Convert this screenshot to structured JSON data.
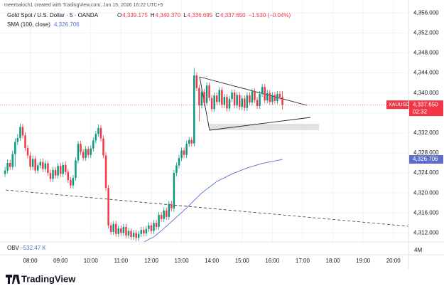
{
  "header": {
    "credit": "meerbaloch1 created with TradingView.com, Jun 15, 2026 16:22 UTC+5",
    "symbol": "Gold Spot / U.S. Dollar · 5 · OANDA",
    "ohlc": [
      {
        "label": "O",
        "value": "4,339.175"
      },
      {
        "label": "H",
        "value": "4,340.370"
      },
      {
        "label": "L",
        "value": "4,336.695"
      },
      {
        "label": "C",
        "value": "4,337.650"
      }
    ],
    "change": "−1.530 (−0.04%)"
  },
  "indicators": {
    "sma_label": "SMA (100, close)",
    "sma_value": "4,326.706",
    "obv_label": "OBV",
    "obv_value": "−532.47 K",
    "obv_scale": "4M"
  },
  "price_tags": {
    "symbol": "XAUUSD",
    "last_price": "4,337.650",
    "countdown": "02:32"
  },
  "footer": {
    "brand": "TradingView"
  },
  "chart_data": {
    "type": "candlestick",
    "up_color": "#089981",
    "down_color": "#f23645",
    "xlim": [
      "07:00",
      "20:30"
    ],
    "xticks": [
      "08:00",
      "09:00",
      "10:00",
      "11:00",
      "12:00",
      "13:00",
      "14:00",
      "15:00",
      "16:00",
      "17:00",
      "18:00",
      "19:00",
      "20:00"
    ],
    "ylim": [
      4310.2,
      4358.6
    ],
    "yticks": [
      {
        "value": 4312,
        "label": "4,312.000"
      },
      {
        "value": 4316,
        "label": "4,316.000"
      },
      {
        "value": 4320,
        "label": "4,320.000"
      },
      {
        "value": 4324,
        "label": "4,324.000"
      },
      {
        "value": 4328,
        "label": "4,328.000"
      },
      {
        "value": 4332,
        "label": "4,332.000"
      },
      {
        "value": 4336,
        "label": "4,336.000"
      },
      {
        "value": 4340,
        "label": "4,340.000"
      },
      {
        "value": 4344,
        "label": "4,344.000"
      },
      {
        "value": 4348,
        "label": "4,348.000"
      },
      {
        "value": 4352,
        "label": "4,352.000"
      },
      {
        "value": 4356,
        "label": "4,356.000"
      }
    ],
    "x": [
      "07:10",
      "07:15",
      "07:20",
      "07:25",
      "07:30",
      "07:35",
      "07:40",
      "07:45",
      "07:50",
      "07:55",
      "08:00",
      "08:05",
      "08:10",
      "08:15",
      "08:20",
      "08:25",
      "08:30",
      "08:35",
      "08:40",
      "08:45",
      "08:50",
      "08:55",
      "09:00",
      "09:05",
      "09:10",
      "09:15",
      "09:20",
      "09:25",
      "09:30",
      "09:35",
      "09:40",
      "09:45",
      "09:50",
      "09:55",
      "10:00",
      "10:05",
      "10:10",
      "10:15",
      "10:20",
      "10:25",
      "10:30",
      "10:35",
      "10:40",
      "10:45",
      "10:50",
      "10:55",
      "11:00",
      "11:05",
      "11:10",
      "11:15",
      "11:20",
      "11:25",
      "11:30",
      "11:35",
      "11:40",
      "11:45",
      "11:50",
      "11:55",
      "12:00",
      "12:05",
      "12:10",
      "12:15",
      "12:20",
      "12:25",
      "12:30",
      "12:35",
      "12:40",
      "12:45",
      "12:50",
      "12:55",
      "13:00",
      "13:05",
      "13:10",
      "13:15",
      "13:20",
      "13:25",
      "13:30",
      "13:35",
      "13:40",
      "13:45",
      "13:50",
      "13:55",
      "14:00",
      "14:05",
      "14:10",
      "14:15",
      "14:20",
      "14:25",
      "14:30",
      "14:35",
      "14:40",
      "14:45",
      "14:50",
      "14:55",
      "15:00",
      "15:05",
      "15:10",
      "15:15",
      "15:20",
      "15:25",
      "15:30",
      "15:35",
      "15:40",
      "15:45",
      "15:50",
      "15:55",
      "16:00",
      "16:05",
      "16:10",
      "16:15",
      "16:20"
    ],
    "open": [
      4323.8,
      4324.5,
      4326.0,
      4325.2,
      4327.8,
      4330.2,
      4331.0,
      4333.2,
      4331.5,
      4329.0,
      4327.5,
      4325.2,
      4326.8,
      4324.5,
      4325.5,
      4326.2,
      4324.8,
      4325.9,
      4324.0,
      4322.8,
      4324.6,
      4323.5,
      4325.4,
      4323.8,
      4325.6,
      4324.2,
      4322.6,
      4321.5,
      4323.0,
      4326.5,
      4329.8,
      4328.2,
      4327.0,
      4328.8,
      4327.6,
      4328.9,
      4330.5,
      4331.8,
      4333.0,
      4330.9,
      4327.5,
      4321.0,
      4313.5,
      4312.2,
      4313.8,
      4311.8,
      4312.9,
      4312.0,
      4313.2,
      4311.5,
      4312.4,
      4311.2,
      4312.0,
      4311.0,
      4311.8,
      4312.6,
      4311.9,
      4312.8,
      4313.5,
      4312.4,
      4314.0,
      4313.2,
      4315.6,
      4314.8,
      4316.5,
      4315.2,
      4317.8,
      4316.9,
      4324.0,
      4325.5,
      4327.0,
      4328.5,
      4327.6,
      4329.8,
      4330.6,
      4329.9,
      4343.5,
      4341.0,
      4337.5,
      4340.2,
      4338.0,
      4341.5,
      4339.0,
      4336.8,
      4339.5,
      4338.2,
      4340.6,
      4337.6,
      4339.2,
      4336.9,
      4338.8,
      4340.1,
      4337.5,
      4339.6,
      4337.2,
      4338.9,
      4337.0,
      4339.5,
      4338.1,
      4340.3,
      4338.6,
      4337.4,
      4339.8,
      4341.2,
      4338.5,
      4340.0,
      4338.2,
      4339.6,
      4338.4,
      4339.8,
      4339.175
    ],
    "high": [
      4325.2,
      4326.7,
      4326.6,
      4328.5,
      4330.9,
      4331.8,
      4333.9,
      4333.8,
      4332.1,
      4329.6,
      4328.1,
      4327.5,
      4327.4,
      4326.1,
      4326.8,
      4326.9,
      4326.5,
      4326.4,
      4324.7,
      4325.2,
      4325.2,
      4326.0,
      4326.0,
      4326.2,
      4326.3,
      4324.8,
      4323.2,
      4323.6,
      4327.1,
      4330.4,
      4330.4,
      4328.8,
      4329.4,
      4329.4,
      4329.5,
      4331.1,
      4332.4,
      4333.7,
      4333.6,
      4331.5,
      4328.1,
      4321.6,
      4314.1,
      4314.4,
      4314.4,
      4313.5,
      4313.5,
      4313.8,
      4313.8,
      4313.0,
      4312.9,
      4312.6,
      4312.6,
      4312.4,
      4313.2,
      4313.2,
      4313.4,
      4314.1,
      4314.1,
      4314.6,
      4314.6,
      4316.2,
      4316.2,
      4317.1,
      4317.1,
      4318.4,
      4318.4,
      4324.6,
      4326.1,
      4327.6,
      4329.1,
      4329.1,
      4330.4,
      4331.2,
      4331.2,
      4345.0,
      4344.1,
      4341.6,
      4340.8,
      4340.8,
      4342.1,
      4342.1,
      4339.6,
      4340.1,
      4340.1,
      4341.2,
      4341.2,
      4339.8,
      4339.8,
      4339.4,
      4340.7,
      4340.7,
      4340.2,
      4340.2,
      4339.5,
      4339.5,
      4340.1,
      4340.1,
      4340.9,
      4340.9,
      4339.2,
      4340.4,
      4341.8,
      4341.8,
      4340.6,
      4340.6,
      4340.2,
      4340.2,
      4340.4,
      4340.4,
      4340.37
    ],
    "low": [
      4323.2,
      4323.9,
      4324.6,
      4324.6,
      4325.2,
      4329.6,
      4330.4,
      4330.9,
      4328.4,
      4326.9,
      4324.6,
      4324.6,
      4323.9,
      4323.9,
      4324.9,
      4324.2,
      4324.2,
      4323.4,
      4322.2,
      4322.2,
      4322.9,
      4322.9,
      4323.2,
      4323.2,
      4323.6,
      4322.0,
      4320.9,
      4320.9,
      4322.4,
      4325.9,
      4327.6,
      4326.4,
      4326.4,
      4327.0,
      4327.0,
      4328.3,
      4329.9,
      4331.2,
      4330.3,
      4326.9,
      4320.4,
      4312.9,
      4311.6,
      4311.6,
      4311.2,
      4311.2,
      4311.4,
      4311.4,
      4310.9,
      4310.9,
      4310.6,
      4310.6,
      4310.4,
      4310.4,
      4311.2,
      4311.3,
      4311.3,
      4312.2,
      4311.8,
      4311.8,
      4312.6,
      4312.6,
      4314.2,
      4314.2,
      4314.6,
      4314.6,
      4316.3,
      4316.3,
      4323.4,
      4324.9,
      4326.4,
      4327.0,
      4327.0,
      4329.2,
      4329.3,
      4329.3,
      4340.4,
      4334.3,
      4336.9,
      4337.4,
      4337.4,
      4338.4,
      4336.2,
      4336.2,
      4337.6,
      4337.6,
      4337.0,
      4337.0,
      4336.3,
      4336.3,
      4338.2,
      4336.9,
      4336.9,
      4336.6,
      4336.6,
      4336.4,
      4336.4,
      4337.5,
      4337.5,
      4338.0,
      4336.8,
      4336.8,
      4339.2,
      4337.9,
      4337.9,
      4337.6,
      4337.6,
      4337.8,
      4337.8,
      4338.6,
      4336.695
    ],
    "close": [
      4324.5,
      4326.0,
      4325.2,
      4327.8,
      4330.2,
      4331.0,
      4333.2,
      4331.5,
      4329.0,
      4327.5,
      4325.2,
      4326.8,
      4324.5,
      4325.5,
      4326.2,
      4324.8,
      4325.9,
      4324.0,
      4322.8,
      4324.6,
      4323.5,
      4325.4,
      4323.8,
      4325.6,
      4324.2,
      4322.6,
      4321.5,
      4323.0,
      4326.5,
      4329.8,
      4328.2,
      4327.0,
      4328.8,
      4327.6,
      4328.9,
      4330.5,
      4331.8,
      4333.0,
      4330.9,
      4327.5,
      4321.0,
      4313.5,
      4312.2,
      4313.8,
      4311.8,
      4312.9,
      4312.0,
      4313.2,
      4311.5,
      4312.4,
      4311.2,
      4312.0,
      4311.0,
      4311.8,
      4312.6,
      4311.9,
      4312.8,
      4313.5,
      4312.4,
      4314.0,
      4313.2,
      4315.6,
      4314.8,
      4316.5,
      4315.2,
      4317.8,
      4316.9,
      4324.0,
      4325.5,
      4327.0,
      4328.5,
      4327.6,
      4329.8,
      4330.6,
      4329.9,
      4343.5,
      4341.0,
      4337.5,
      4340.2,
      4338.0,
      4341.5,
      4339.0,
      4336.8,
      4339.5,
      4338.2,
      4340.6,
      4337.6,
      4339.2,
      4336.9,
      4338.8,
      4340.1,
      4337.5,
      4339.6,
      4337.2,
      4338.9,
      4337.0,
      4339.5,
      4338.1,
      4340.3,
      4338.6,
      4337.4,
      4339.8,
      4341.2,
      4338.5,
      4340.0,
      4338.2,
      4339.6,
      4338.4,
      4339.8,
      4339.175,
      4337.65
    ],
    "sma": {
      "color": "#5b6fc7",
      "x": [
        "11:45",
        "12:05",
        "12:25",
        "12:45",
        "13:10",
        "13:40",
        "14:10",
        "14:40",
        "15:10",
        "15:40",
        "16:20"
      ],
      "values": [
        4310.2,
        4311.2,
        4312.9,
        4314.7,
        4317.0,
        4320.0,
        4322.3,
        4323.8,
        4325.0,
        4325.9,
        4326.706
      ]
    }
  }
}
